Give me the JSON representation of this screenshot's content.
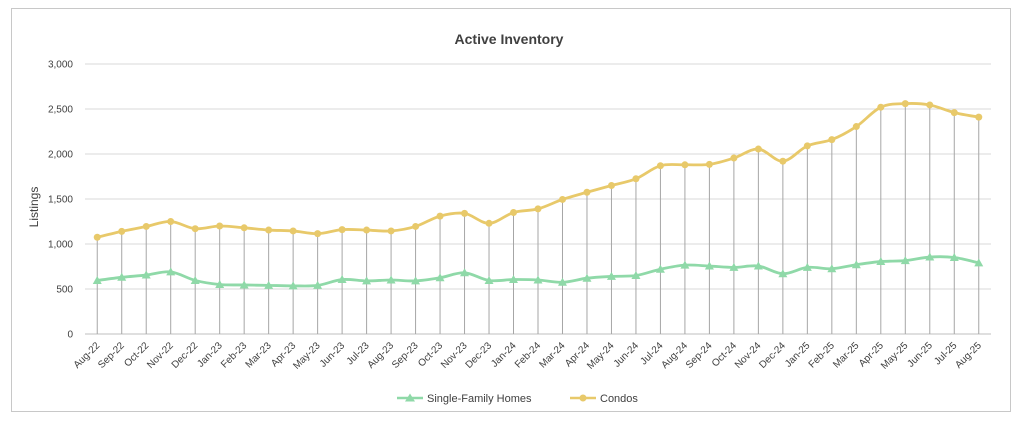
{
  "chart_data": {
    "type": "line",
    "title": "Active Inventory",
    "xlabel": "",
    "ylabel": "Listings",
    "ylim": [
      0,
      3000
    ],
    "yticks": [
      "0",
      "500",
      "1,000",
      "1,500",
      "2,000",
      "2,500",
      "3,000"
    ],
    "ytick_values": [
      0,
      500,
      1000,
      1500,
      2000,
      2500,
      3000
    ],
    "grid": true,
    "legend_position": "bottom",
    "categories": [
      "Aug-22",
      "Sep-22",
      "Oct-22",
      "Nov-22",
      "Dec-22",
      "Jan-23",
      "Feb-23",
      "Mar-23",
      "Apr-23",
      "May-23",
      "Jun-23",
      "Jul-23",
      "Aug-23",
      "Sep-23",
      "Oct-23",
      "Nov-23",
      "Dec-23",
      "Jan-24",
      "Feb-24",
      "Mar-24",
      "Apr-24",
      "May-24",
      "Jun-24",
      "Jul-24",
      "Aug-24",
      "Sep-24",
      "Oct-24",
      "Nov-24",
      "Dec-24",
      "Jan-25",
      "Feb-25",
      "Mar-25",
      "Apr-25",
      "May-25",
      "Jun-25",
      "Jul-25",
      "Aug-25"
    ],
    "series": [
      {
        "name": "Single-Family Homes",
        "color": "#8fd9a8",
        "marker": "triangle",
        "values": [
          595,
          630,
          655,
          690,
          595,
          550,
          545,
          540,
          535,
          540,
          605,
          590,
          600,
          590,
          625,
          680,
          595,
          605,
          600,
          575,
          620,
          640,
          650,
          720,
          765,
          755,
          740,
          755,
          670,
          740,
          725,
          770,
          805,
          815,
          855,
          850,
          790
        ]
      },
      {
        "name": "Condos",
        "color": "#e8c96a",
        "marker": "circle",
        "values": [
          1075,
          1140,
          1195,
          1250,
          1170,
          1200,
          1180,
          1155,
          1145,
          1115,
          1160,
          1155,
          1145,
          1195,
          1310,
          1340,
          1230,
          1350,
          1390,
          1495,
          1575,
          1650,
          1725,
          1870,
          1880,
          1885,
          1955,
          2055,
          1920,
          2090,
          2160,
          2305,
          2520,
          2560,
          2545,
          2460,
          2410
        ]
      }
    ]
  }
}
